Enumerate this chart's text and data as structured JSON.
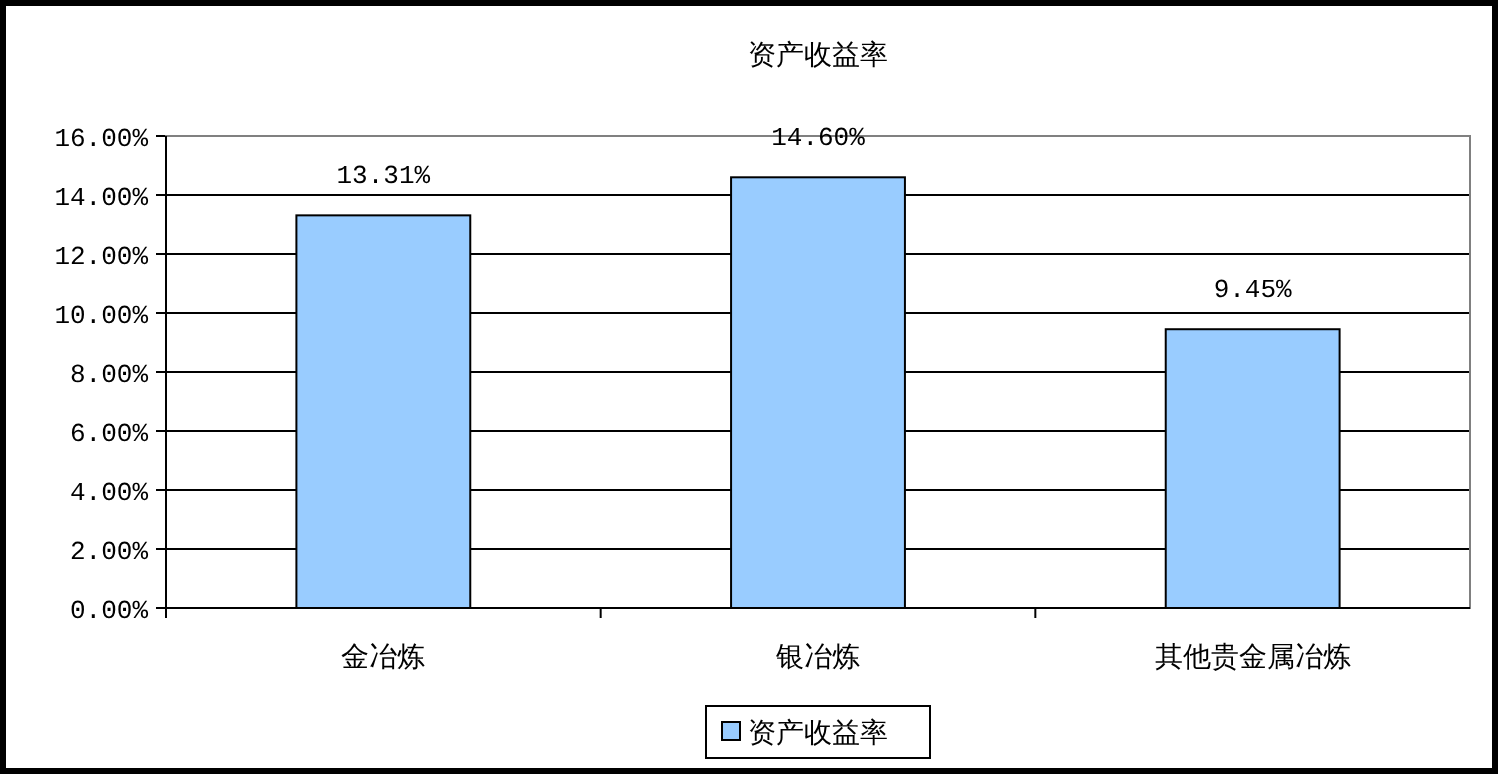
{
  "chart_data": {
    "type": "bar",
    "title": "资产收益率",
    "categories": [
      "金冶炼",
      "银冶炼",
      "其他贵金属冶炼"
    ],
    "series": [
      {
        "name": "资产收益率",
        "color": "#99ccff",
        "values": [
          13.31,
          14.6,
          9.45
        ],
        "value_labels": [
          "13.31%",
          "14.60%",
          "9.45%"
        ]
      }
    ],
    "ylim": [
      0,
      16
    ],
    "yticks": [
      {
        "value": 0,
        "label": "0.00%"
      },
      {
        "value": 2,
        "label": "2.00%"
      },
      {
        "value": 4,
        "label": "4.00%"
      },
      {
        "value": 6,
        "label": "6.00%"
      },
      {
        "value": 8,
        "label": "8.00%"
      },
      {
        "value": 10,
        "label": "10.00%"
      },
      {
        "value": 12,
        "label": "12.00%"
      },
      {
        "value": 14,
        "label": "14.00%"
      },
      {
        "value": 16,
        "label": "16.00%"
      }
    ],
    "grid": "y",
    "legend": "bottom"
  }
}
